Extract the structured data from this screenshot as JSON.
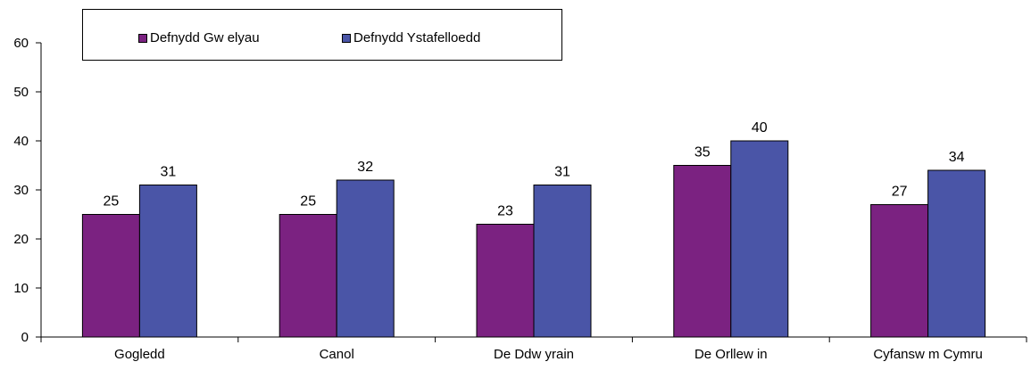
{
  "chart_data": {
    "type": "bar",
    "categories": [
      "Gogledd",
      "Canol",
      "De Ddw yrain",
      "De Orllew in",
      "Cyfansw m Cymru"
    ],
    "series": [
      {
        "name": "Defnydd Gw elyau",
        "values": [
          25,
          25,
          23,
          35,
          27
        ],
        "color": "#7B2281"
      },
      {
        "name": "Defnydd Ystafelloedd",
        "values": [
          31,
          32,
          31,
          40,
          34
        ],
        "color": "#4A55A7"
      }
    ],
    "yticks": [
      "0",
      "10",
      "20",
      "30",
      "40",
      "50",
      "60"
    ],
    "ylim": [
      0,
      60
    ],
    "data_labels": true,
    "grid": false,
    "legend_position": "top-left"
  }
}
